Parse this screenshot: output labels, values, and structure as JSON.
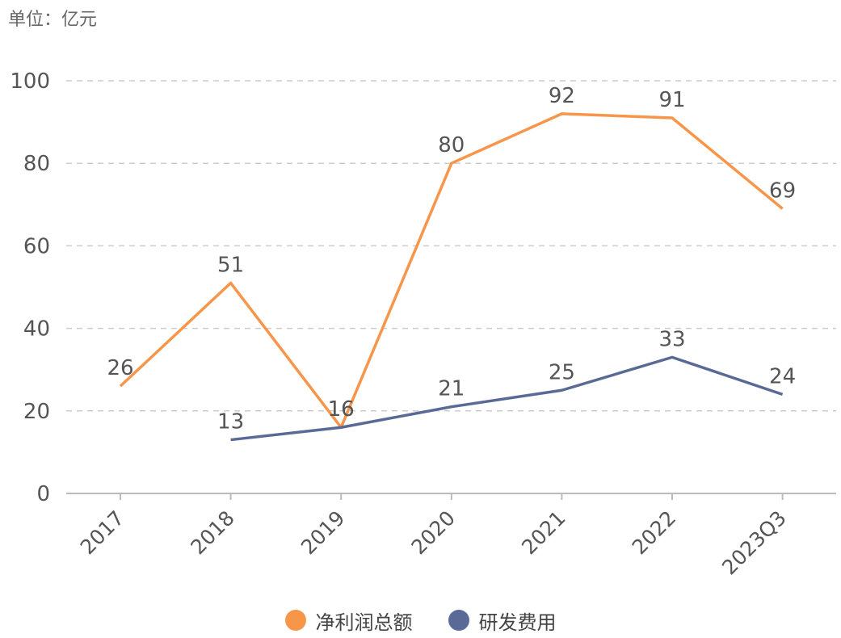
{
  "unit_label": "单位：亿元",
  "chart_data": {
    "type": "line",
    "categories": [
      "2017",
      "2018",
      "2019",
      "2020",
      "2021",
      "2022",
      "2023Q3"
    ],
    "ylim": [
      0,
      100
    ],
    "yticks": [
      0,
      20,
      40,
      60,
      80,
      100
    ],
    "grid": true,
    "legend_position": "bottom",
    "series": [
      {
        "name": "净利润总额",
        "color": "#F7964A",
        "values": [
          26,
          51,
          16,
          80,
          92,
          91,
          69
        ]
      },
      {
        "name": "研发费用",
        "color": "#5A6A96",
        "values": [
          null,
          13,
          16,
          21,
          25,
          33,
          24
        ]
      }
    ]
  }
}
